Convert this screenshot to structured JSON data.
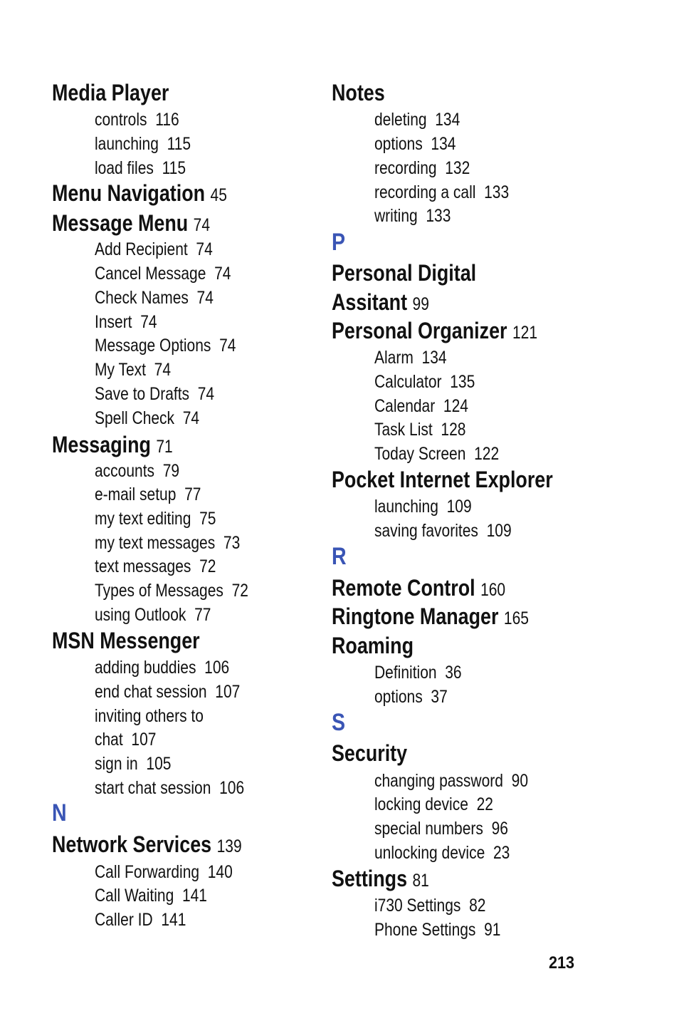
{
  "page_number": "213",
  "letter_color": "#3a55b5",
  "columns": [
    {
      "entries": [
        {
          "type": "h",
          "text": "Media Player",
          "page": ""
        },
        {
          "type": "s",
          "text": "controls",
          "page": "116"
        },
        {
          "type": "s",
          "text": "launching",
          "page": "115"
        },
        {
          "type": "s",
          "text": "load files",
          "page": "115"
        },
        {
          "type": "h",
          "text": "Menu Navigation",
          "page": "45"
        },
        {
          "type": "h",
          "text": "Message Menu",
          "page": "74"
        },
        {
          "type": "s",
          "text": "Add Recipient",
          "page": "74"
        },
        {
          "type": "s",
          "text": "Cancel Message",
          "page": "74"
        },
        {
          "type": "s",
          "text": "Check Names",
          "page": "74"
        },
        {
          "type": "s",
          "text": "Insert",
          "page": "74"
        },
        {
          "type": "s",
          "text": "Message Options",
          "page": "74"
        },
        {
          "type": "s",
          "text": "My Text",
          "page": "74"
        },
        {
          "type": "s",
          "text": "Save to Drafts",
          "page": "74"
        },
        {
          "type": "s",
          "text": "Spell Check",
          "page": "74"
        },
        {
          "type": "h",
          "text": "Messaging",
          "page": "71"
        },
        {
          "type": "s",
          "text": "accounts",
          "page": "79"
        },
        {
          "type": "s",
          "text": "e-mail setup",
          "page": "77"
        },
        {
          "type": "s",
          "text": "my text editing",
          "page": "75"
        },
        {
          "type": "s",
          "text": "my text messages",
          "page": "73"
        },
        {
          "type": "s",
          "text": "text messages",
          "page": "72"
        },
        {
          "type": "s",
          "text": "Types of Messages",
          "page": "72"
        },
        {
          "type": "s",
          "text": "using Outlook",
          "page": "77"
        },
        {
          "type": "h",
          "text": "MSN Messenger",
          "page": ""
        },
        {
          "type": "s",
          "text": "adding buddies",
          "page": "106"
        },
        {
          "type": "s",
          "text": "end chat session",
          "page": "107"
        },
        {
          "type": "s",
          "text": "inviting others to",
          "page": ""
        },
        {
          "type": "s",
          "text": "chat",
          "page": "107"
        },
        {
          "type": "s",
          "text": "sign in",
          "page": "105"
        },
        {
          "type": "s",
          "text": "start chat session",
          "page": "106"
        },
        {
          "type": "l",
          "text": "N",
          "page": ""
        },
        {
          "type": "h",
          "text": "Network Services",
          "page": "139"
        },
        {
          "type": "s",
          "text": "Call Forwarding",
          "page": "140"
        },
        {
          "type": "s",
          "text": "Call Waiting",
          "page": "141"
        },
        {
          "type": "s",
          "text": "Caller ID",
          "page": "141"
        }
      ]
    },
    {
      "entries": [
        {
          "type": "h",
          "text": "Notes",
          "page": ""
        },
        {
          "type": "s",
          "text": "deleting",
          "page": "134"
        },
        {
          "type": "s",
          "text": "options",
          "page": "134"
        },
        {
          "type": "s",
          "text": "recording",
          "page": "132"
        },
        {
          "type": "s",
          "text": "recording a call",
          "page": "133"
        },
        {
          "type": "s",
          "text": "writing",
          "page": "133"
        },
        {
          "type": "l",
          "text": "P",
          "page": ""
        },
        {
          "type": "h",
          "text": "Personal Digital",
          "page": ""
        },
        {
          "type": "h",
          "text": "Assitant",
          "page": "99"
        },
        {
          "type": "h",
          "text": "Personal Organizer",
          "page": "121"
        },
        {
          "type": "s",
          "text": "Alarm",
          "page": "134"
        },
        {
          "type": "s",
          "text": "Calculator",
          "page": "135"
        },
        {
          "type": "s",
          "text": "Calendar",
          "page": "124"
        },
        {
          "type": "s",
          "text": "Task List",
          "page": "128"
        },
        {
          "type": "s",
          "text": "Today Screen",
          "page": "122"
        },
        {
          "type": "h",
          "text": "Pocket Internet Explorer",
          "page": ""
        },
        {
          "type": "s",
          "text": "launching",
          "page": "109"
        },
        {
          "type": "s",
          "text": "saving favorites",
          "page": "109"
        },
        {
          "type": "l",
          "text": "R",
          "page": ""
        },
        {
          "type": "h",
          "text": "Remote Control",
          "page": "160"
        },
        {
          "type": "h",
          "text": "Ringtone Manager",
          "page": "165"
        },
        {
          "type": "h",
          "text": "Roaming",
          "page": ""
        },
        {
          "type": "s",
          "text": "Definition",
          "page": "36"
        },
        {
          "type": "s",
          "text": "options",
          "page": "37"
        },
        {
          "type": "l",
          "text": "S",
          "page": ""
        },
        {
          "type": "h",
          "text": "Security",
          "page": ""
        },
        {
          "type": "s",
          "text": "changing password",
          "page": "90"
        },
        {
          "type": "s",
          "text": "locking device",
          "page": "22"
        },
        {
          "type": "s",
          "text": "special numbers",
          "page": "96"
        },
        {
          "type": "s",
          "text": "unlocking device",
          "page": "23"
        },
        {
          "type": "h",
          "text": "Settings",
          "page": "81"
        },
        {
          "type": "s",
          "text": "i730 Settings",
          "page": "82"
        },
        {
          "type": "s",
          "text": "Phone Settings",
          "page": "91"
        }
      ]
    }
  ]
}
